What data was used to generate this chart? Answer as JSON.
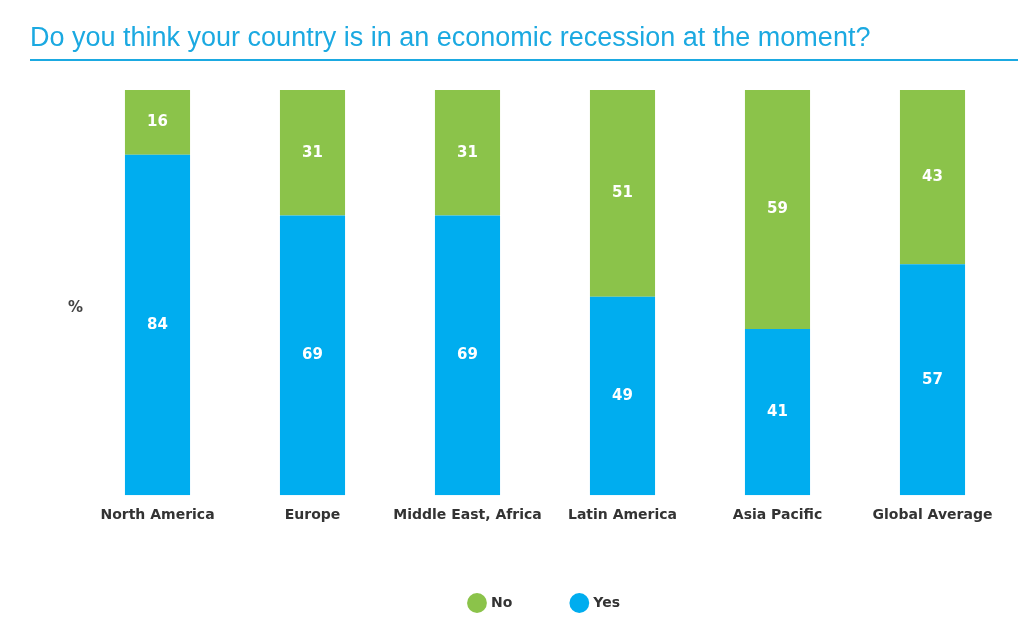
{
  "chart_data": {
    "type": "bar",
    "title": "Do you think your country is in an economic recession at the moment?",
    "ylabel": "%",
    "categories": [
      "North America",
      "Europe",
      "Middle East, Africa",
      "Latin America",
      "Asia Pacific",
      "Global Average"
    ],
    "stacked": true,
    "data_labels": true,
    "legend": "bottom",
    "grid": false,
    "tick_labels": "x",
    "series": [
      {
        "name": "Yes",
        "color": "#00adef",
        "values": [
          84,
          69,
          69,
          49,
          41,
          57
        ]
      },
      {
        "name": "No",
        "color": "#8bc34a",
        "values": [
          16,
          31,
          31,
          51,
          59,
          43
        ]
      }
    ]
  }
}
